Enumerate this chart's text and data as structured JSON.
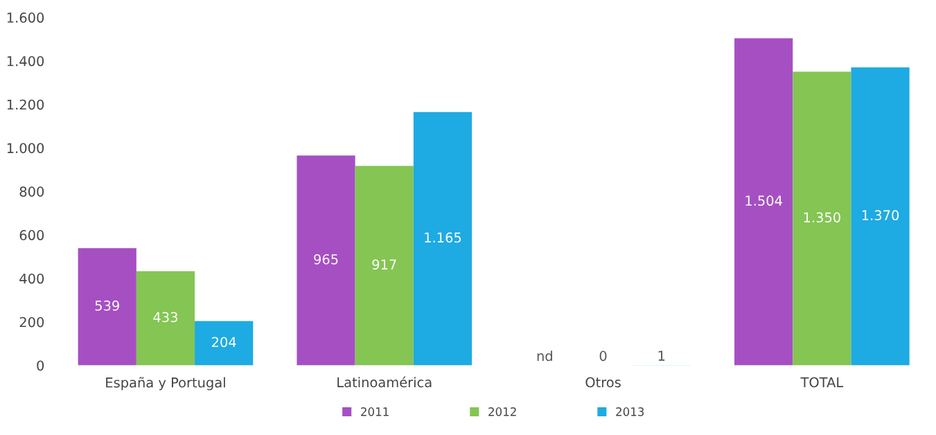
{
  "chart_data": {
    "type": "bar",
    "categories": [
      "España y Portugal",
      "Latinoamérica",
      "Otros",
      "TOTAL"
    ],
    "series": [
      {
        "name": "2011",
        "color": "#a64fc3",
        "values": [
          539,
          965,
          null,
          1504
        ],
        "value_labels": [
          "539",
          "965",
          "nd",
          "1.504"
        ]
      },
      {
        "name": "2012",
        "color": "#84c553",
        "values": [
          433,
          917,
          0,
          1350
        ],
        "value_labels": [
          "433",
          "917",
          "0",
          "1.350"
        ]
      },
      {
        "name": "2013",
        "color": "#1eaae2",
        "values": [
          204,
          1165,
          1,
          1370
        ],
        "value_labels": [
          "204",
          "1.165",
          "1",
          "1.370"
        ]
      }
    ],
    "ylim": [
      0,
      1600
    ],
    "yticks": [
      0,
      {
        "value": 200,
        "label": "200"
      },
      {
        "value": 400,
        "label": "400"
      },
      {
        "value": 600,
        "label": "600"
      },
      {
        "value": 800,
        "label": "800"
      },
      {
        "value": 1000,
        "label": "1.000"
      },
      {
        "value": 1200,
        "label": "1.200"
      },
      {
        "value": 1400,
        "label": "1.400"
      },
      {
        "value": 1600,
        "label": "1.600"
      }
    ],
    "grid": false,
    "legend": "bottom"
  }
}
